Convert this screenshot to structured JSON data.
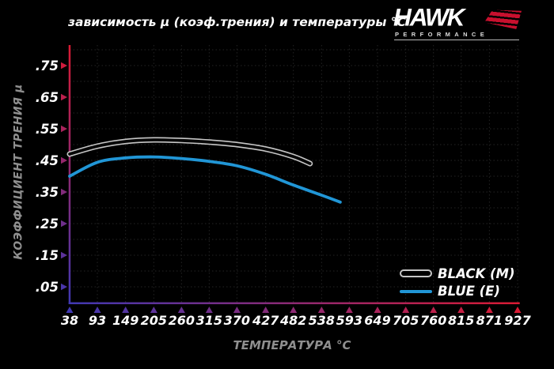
{
  "title": "зависимость μ (коэф.трения) и температуры °C",
  "logo": {
    "brand": "HAWK",
    "sub": "PERFORMANCE"
  },
  "legend": [
    {
      "label": "BLACK (M)",
      "swatch": "outlined-capsule",
      "color": "#c6c6c6"
    },
    {
      "label": "BLUE (E)",
      "swatch": "line",
      "color": "#2196d6"
    }
  ],
  "chart_data": {
    "type": "line",
    "title": "зависимость μ (коэф.трения) и температуры °C",
    "xlabel": "ТЕМПЕРАТУРА °C",
    "ylabel": "КОЭФФИЦИЕНТ ТРЕНИЯ μ",
    "x_ticks": [
      38,
      93,
      149,
      205,
      260,
      315,
      370,
      427,
      482,
      538,
      593,
      649,
      705,
      760,
      815,
      871,
      927
    ],
    "y_ticks": [
      {
        "label": ".75",
        "value": 0.75
      },
      {
        "label": ".65",
        "value": 0.65
      },
      {
        "label": ".55",
        "value": 0.55
      },
      {
        "label": ".45",
        "value": 0.45
      },
      {
        "label": ".35",
        "value": 0.35
      },
      {
        "label": ".25",
        "value": 0.25
      },
      {
        "label": ".15",
        "value": 0.15
      },
      {
        "label": ".05",
        "value": 0.05
      }
    ],
    "xlim": [
      38,
      927
    ],
    "ylim": [
      0,
      0.8
    ],
    "grid": "dotted",
    "legend_position": "bottom-right",
    "series": [
      {
        "name": "BLACK (M)",
        "style": "black-outlined",
        "points": [
          [
            38,
            0.47
          ],
          [
            93,
            0.495
          ],
          [
            149,
            0.51
          ],
          [
            205,
            0.515
          ],
          [
            260,
            0.513
          ],
          [
            315,
            0.508
          ],
          [
            370,
            0.5
          ],
          [
            427,
            0.486
          ],
          [
            482,
            0.462
          ],
          [
            515,
            0.44
          ]
        ]
      },
      {
        "name": "BLUE (E)",
        "style": "solid",
        "color": "#2196d6",
        "points": [
          [
            38,
            0.4
          ],
          [
            93,
            0.444
          ],
          [
            149,
            0.458
          ],
          [
            205,
            0.461
          ],
          [
            260,
            0.456
          ],
          [
            315,
            0.447
          ],
          [
            370,
            0.433
          ],
          [
            427,
            0.406
          ],
          [
            482,
            0.372
          ],
          [
            538,
            0.34
          ],
          [
            575,
            0.318
          ]
        ]
      }
    ]
  },
  "colors": {
    "background": "#000000",
    "text": "#ffffff",
    "muted_text": "#8f8f8f",
    "axis_red": "#da1a33",
    "axis_purple": "#4038b2",
    "grid": "#232323",
    "blue_curve": "#2196d6",
    "black_curve_outline": "#c6c6c6",
    "wing_red": "#c8102e"
  }
}
